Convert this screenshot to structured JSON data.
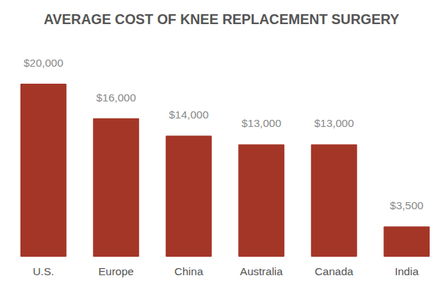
{
  "chart_data": {
    "type": "bar",
    "title": "AVERAGE COST OF KNEE REPLACEMENT SURGERY",
    "categories": [
      "U.S.",
      "Europe",
      "China",
      "Australia",
      "Canada",
      "India"
    ],
    "values": [
      20000,
      16000,
      14000,
      13000,
      13000,
      3500
    ],
    "value_labels": [
      "$20,000",
      "$16,000",
      "$14,000",
      "$13,000",
      "$13,000",
      "$3,500"
    ],
    "color": "#a43627",
    "ylim": [
      0,
      20000
    ],
    "grid": false,
    "data_labels": true,
    "tick_labels": "x"
  }
}
